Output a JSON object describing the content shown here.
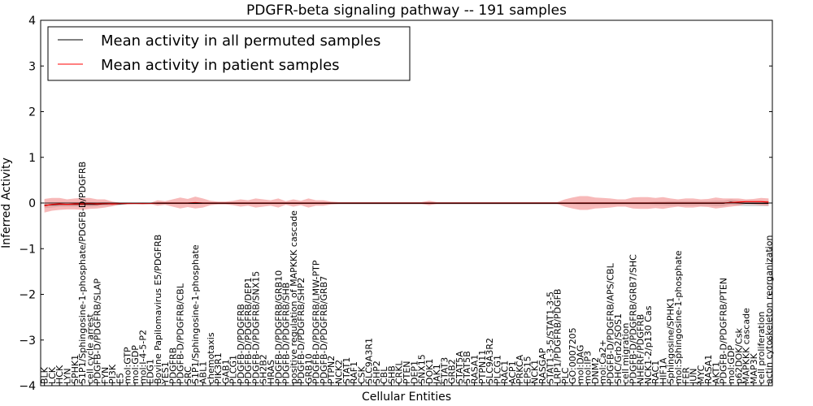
{
  "chart_data": {
    "type": "line",
    "title": "PDGFR-beta signaling pathway -- 191 samples",
    "xlabel": "Cellular Entities",
    "ylabel": "Inferred Activity",
    "ylim": [
      -4,
      4
    ],
    "yticks": [
      -4,
      -3,
      -2,
      -1,
      0,
      1,
      2,
      3,
      4
    ],
    "legend_position": "top-left",
    "colors": {
      "permuted": "#000000",
      "patient": "#ff0000",
      "patient_band": "#f08080",
      "permuted_band": "#bbbbbb"
    },
    "categories": [
      "BLK",
      "LCK",
      "HCK",
      "LYN",
      "SPHK1",
      "S1P1/Sphingosine-1-phosphate/PDGFB-D/PDGFRB",
      "cell cycle arrest",
      "PDGFB-D/PDGFRB/SLAP",
      "FYN",
      "PI3K",
      "E5",
      "mol:GTP",
      "mol:GDP",
      "mol:I-4-5-P2",
      "EDG1",
      "Bovine Papilomavirus E5/PDGFRB",
      "YES1",
      "PDGFRB",
      "PDGFB-D/PDGFRB/CBL",
      "SRC",
      "S1P1/Sphingosine-1-phosphate",
      "ABL1",
      "chemotaxis",
      "PIK3R1",
      "GAB1",
      "PLCG1",
      "PDGFB-D/PDGFRB",
      "PDGFB-D/PDGFRB/DEP1",
      "PDGFB-D/PDGFRB/SNX15",
      "SH2B2",
      "HRAS",
      "PDGFB-D/PDGFRB/GRB10",
      "PDGFB-D/PDGFRB/SHB",
      "positive regulation of MAPKKK cascade",
      "PDGFB-D/PDGFRB/SHP2",
      "GRB10",
      "PDGFB-D/PDGFRB/LMW-PTP",
      "PDGFB-D/PDGFRB/GRB7",
      "PTPN2",
      "NCK2",
      "STAT1",
      "RAF1",
      "CSK",
      "SLC9A3R1",
      "SHP2",
      "CBL",
      "SHB",
      "CRKL",
      "PTEN",
      "DEP1",
      "SNX15",
      "DOK1",
      "JAK1",
      "STAT3",
      "GRB2",
      "STAT5A",
      "STAT5B",
      "RASA1",
      "PTPN11",
      "SLC9A3R2",
      "PLCG1",
      "RAC1",
      "ACP1",
      "PRKCA",
      "EPS15",
      "NCK1",
      "RASGAP",
      "STAT1-3-5/STAT1-3-5",
      "LRP1/PDGFRB/PDGFB",
      "PLC",
      "GO:0007205",
      "mol:DAG",
      "mol:IP3",
      "DNM2",
      "mol:Ca2+",
      "PDGFB-D/PDGFRB/APS/CBL",
      "SHC/Grb2/SOS1",
      "cell migration",
      "PDGFB-D/PDGFRB/GRB7/SHC",
      "NHERF/PDGFRB",
      "NCK1-2/p130 Cas",
      "RAC1",
      "HIF1A",
      "Sphingosine/SPHK1",
      "mol:Sphingosine-1-phosphate",
      "FER",
      "JUN",
      "MYC",
      "RASA1",
      "AKT1",
      "PDGFB-D/PDGFRB/PTEN",
      "mol:GDP",
      "p62DOK/Csk",
      "MAPKKK cascade",
      "MAP3K",
      "cell proliferation",
      "actin cytoskeleton reorganization"
    ],
    "tick_labels": [
      "BLK",
      "LCK",
      "HCK",
      "LYN",
      "SPHK1",
      "S1P1/Sphingosine-1-phosphate/PDGFB-D/PDGFRB",
      "cell cycle arrest",
      "PDGFB-D/PDGFRB/SLAP",
      "FYN",
      "PI3K",
      "E5",
      "mol:GTP",
      "mol:GDP",
      "mol:I-4-5-P2",
      "EDG1",
      "Bovine Papilomavirus E5/PDGFRB",
      "YES1",
      "PDGFRB",
      "PDGFB-D/PDGFRB/CBL",
      "SRC",
      "S1P1/Sphingosine-1-phosphate",
      "ABL1",
      "chemotaxis",
      "PIK3R1",
      "GAB1",
      "PLCG1",
      "PDGFB-D/PDGFRB",
      "PDGFB-D/PDGFRB/DEP1",
      "PDGFB-D/PDGFRB/SNX15",
      "SH2B2",
      "HRAS",
      "PDGFB-D/PDGFRB/GRB10",
      "PDGFB-D/PDGFRB/SHB",
      "positive regulation of MAPKKK cascade",
      "PDGFB-D/PDGFRB/SHP2",
      "GRB10",
      "PDGFB-D/PDGFRB/LMW-PTP",
      "PDGFB-D/PDGFRB/GRB7",
      "PTPN2",
      "NCK2",
      "STAT1",
      "RAF1",
      "CSK",
      "SLC9A3R1",
      "SHP2",
      "CBL",
      "SHB",
      "CRKL",
      "PTEN",
      "DEP1",
      "SNX15",
      "DOK1",
      "JAK1",
      "STAT3",
      "GRB2",
      "STAT5A",
      "STAT5B",
      "RASA1",
      "PTPN11",
      "SLC9A3R2",
      "PLCG1",
      "RAC1",
      "ACP1",
      "PRKCA",
      "EPS15",
      "NCK1",
      "RASGAP",
      "STAT1-3-5/STAT1-3-5",
      "LRP1/PDGFRB/PDGFB",
      "PLC",
      "GO:0007205",
      "mol:DAG",
      "mol:IP3",
      "DNM2",
      "mol:Ca2+",
      "PDGFB-D/PDGFRB/APS/CBL",
      "SHC/Grb2/SOS1",
      "cell migration",
      "PDGFB-D/PDGFRB/GRB7/SHC",
      "NHERF/PDGFRB",
      "NCK1-2/p130 Cas",
      "RAC1",
      "HIF1A",
      "Sphingosine/SPHK1",
      "mol:Sphingosine-1-phosphate",
      "FER",
      "JUN",
      "MYC",
      "RASA1",
      "AKT1",
      "PDGFB-D/PDGFRB/PTEN",
      "mol:GDP",
      "p62DOK/Csk",
      "MAPKKK cascade",
      "MAP3K",
      "cell proliferation",
      "actin cytoskeleton reorganization"
    ],
    "series": [
      {
        "name": "Mean activity in all permuted samples",
        "color": "#000000",
        "values": [
          -0.05,
          -0.04,
          -0.03,
          -0.03,
          -0.03,
          -0.03,
          -0.03,
          -0.03,
          -0.02,
          -0.02,
          -0.02,
          -0.01,
          -0.01,
          -0.01,
          -0.01,
          -0.01,
          -0.01,
          -0.01,
          -0.01,
          -0.01,
          -0.01,
          -0.01,
          -0.01,
          -0.01,
          -0.01,
          -0.01,
          -0.01,
          -0.01,
          -0.01,
          -0.01,
          -0.01,
          -0.01,
          -0.01,
          -0.01,
          -0.01,
          -0.01,
          -0.01,
          -0.01,
          -0.01,
          -0.01,
          -0.01,
          -0.01,
          -0.01,
          -0.01,
          -0.01,
          -0.01,
          -0.01,
          -0.01,
          -0.01,
          -0.01,
          -0.01,
          -0.01,
          -0.01,
          -0.01,
          -0.01,
          -0.01,
          -0.01,
          -0.01,
          -0.01,
          -0.01,
          -0.01,
          -0.01,
          -0.01,
          -0.01,
          -0.01,
          -0.01,
          -0.01,
          -0.01,
          -0.01,
          -0.01,
          -0.01,
          -0.01,
          -0.01,
          -0.01,
          -0.01,
          -0.01,
          -0.01,
          -0.01,
          -0.01,
          -0.01,
          -0.01,
          -0.01,
          -0.01,
          -0.01,
          -0.01,
          -0.01,
          -0.01,
          -0.01,
          -0.01,
          -0.01,
          -0.01,
          0.02,
          0.0,
          -0.01,
          -0.01,
          -0.01,
          -0.01
        ],
        "band": [
          0.06,
          0.06,
          0.05,
          0.05,
          0.05,
          0.05,
          0.05,
          0.04,
          0.04,
          0.04,
          0.03,
          0.02,
          0.02,
          0.02,
          0.02,
          0.02,
          0.02,
          0.02,
          0.02,
          0.02,
          0.02,
          0.02,
          0.02,
          0.02,
          0.02,
          0.02,
          0.02,
          0.02,
          0.02,
          0.02,
          0.02,
          0.02,
          0.02,
          0.02,
          0.02,
          0.02,
          0.02,
          0.02,
          0.02,
          0.02,
          0.02,
          0.02,
          0.02,
          0.02,
          0.02,
          0.02,
          0.02,
          0.02,
          0.02,
          0.02,
          0.02,
          0.02,
          0.02,
          0.02,
          0.02,
          0.02,
          0.02,
          0.02,
          0.02,
          0.02,
          0.02,
          0.02,
          0.02,
          0.02,
          0.02,
          0.02,
          0.02,
          0.02,
          0.02,
          0.02,
          0.02,
          0.03,
          0.03,
          0.03,
          0.03,
          0.03,
          0.03,
          0.03,
          0.03,
          0.03,
          0.03,
          0.04,
          0.04,
          0.05,
          0.05,
          0.05,
          0.05,
          0.05,
          0.05,
          0.06,
          0.06,
          0.06,
          0.06,
          0.06,
          0.06,
          0.06,
          0.06
        ]
      },
      {
        "name": "Mean activity in patient samples",
        "color": "#ff0000",
        "values": [
          -0.06,
          -0.03,
          -0.02,
          -0.03,
          -0.02,
          -0.02,
          -0.01,
          -0.02,
          -0.01,
          -0.02,
          -0.01,
          -0.01,
          -0.01,
          -0.01,
          -0.01,
          0.0,
          0.0,
          0.0,
          0.0,
          0.0,
          0.01,
          0.0,
          0.0,
          0.0,
          0.0,
          0.0,
          0.0,
          0.0,
          0.0,
          0.0,
          0.0,
          0.0,
          0.0,
          0.0,
          0.0,
          0.0,
          0.0,
          0.0,
          0.0,
          0.0,
          0.0,
          0.0,
          0.0,
          0.0,
          0.0,
          0.0,
          0.0,
          0.0,
          0.0,
          0.0,
          0.0,
          0.0,
          0.0,
          0.0,
          0.0,
          0.0,
          0.0,
          0.0,
          0.0,
          0.0,
          0.0,
          0.0,
          0.0,
          0.0,
          0.0,
          0.0,
          0.0,
          0.0,
          0.0,
          0.0,
          0.0,
          0.0,
          0.0,
          0.0,
          0.0,
          0.0,
          0.0,
          0.0,
          0.0,
          0.0,
          0.0,
          0.0,
          0.0,
          0.0,
          0.0,
          0.0,
          0.0,
          0.0,
          0.0,
          0.0,
          0.0,
          0.01,
          0.02,
          0.03,
          0.03,
          0.03,
          0.02
        ],
        "band": [
          0.15,
          0.14,
          0.13,
          0.11,
          0.12,
          0.13,
          0.12,
          0.1,
          0.09,
          0.05,
          0.02,
          0.02,
          0.01,
          0.02,
          0.01,
          0.06,
          0.04,
          0.08,
          0.12,
          0.09,
          0.13,
          0.1,
          0.05,
          0.03,
          0.03,
          0.05,
          0.08,
          0.06,
          0.1,
          0.08,
          0.06,
          0.1,
          0.04,
          0.08,
          0.05,
          0.1,
          0.06,
          0.06,
          0.03,
          0.02,
          0.02,
          0.02,
          0.02,
          0.02,
          0.02,
          0.02,
          0.02,
          0.02,
          0.02,
          0.02,
          0.02,
          0.05,
          0.02,
          0.02,
          0.02,
          0.02,
          0.02,
          0.02,
          0.02,
          0.02,
          0.02,
          0.02,
          0.02,
          0.02,
          0.02,
          0.02,
          0.02,
          0.02,
          0.02,
          0.08,
          0.12,
          0.15,
          0.15,
          0.12,
          0.11,
          0.1,
          0.08,
          0.08,
          0.12,
          0.13,
          0.13,
          0.11,
          0.13,
          0.1,
          0.08,
          0.1,
          0.1,
          0.08,
          0.09,
          0.12,
          0.1,
          0.09,
          0.08,
          0.05,
          0.06,
          0.08,
          0.08
        ]
      }
    ]
  }
}
